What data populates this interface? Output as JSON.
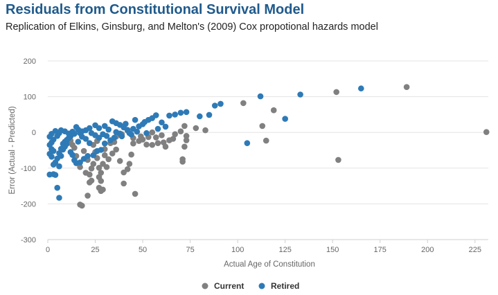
{
  "chart_data": {
    "type": "scatter",
    "title": "Residuals from Constitutional Survival Model",
    "subtitle": "Replication of Elkins, Ginsburg, and Melton's (2009) Cox propotional hazards model",
    "xlabel": "Actual Age of Constitution",
    "ylabel": "Error (Actual - Predicted)",
    "xlim": [
      0,
      232
    ],
    "ylim": [
      -300,
      200
    ],
    "xticks": [
      "0",
      "25",
      "50",
      "75",
      "100",
      "125",
      "150",
      "175",
      "200",
      "225"
    ],
    "yticks": [
      "200",
      "100",
      "0",
      "-100",
      "-200",
      "-300"
    ],
    "grid": "horizontal",
    "legend": "bottom-center",
    "colors": {
      "current": "#808080",
      "retired": "#2e7ab7"
    },
    "series": [
      {
        "name": "Current",
        "color": "#808080",
        "points": [
          [
            189,
            127
          ],
          [
            152,
            113
          ],
          [
            103,
            82
          ],
          [
            119,
            62
          ],
          [
            113,
            18
          ],
          [
            115,
            -23
          ],
          [
            153,
            -77
          ],
          [
            231,
            1
          ],
          [
            83,
            6
          ],
          [
            78,
            12
          ],
          [
            72,
            18
          ],
          [
            70,
            3
          ],
          [
            73,
            -10
          ],
          [
            73,
            -22
          ],
          [
            72,
            -40
          ],
          [
            71,
            -75
          ],
          [
            71,
            -82
          ],
          [
            67,
            -5
          ],
          [
            64,
            -22
          ],
          [
            62,
            -40
          ],
          [
            61,
            -28
          ],
          [
            58,
            -30
          ],
          [
            55,
            -35
          ],
          [
            52,
            -34
          ],
          [
            48,
            -24
          ],
          [
            45,
            -31
          ],
          [
            44,
            -62
          ],
          [
            43,
            -88
          ],
          [
            42,
            -103
          ],
          [
            40,
            -112
          ],
          [
            40,
            -143
          ],
          [
            46,
            -172
          ],
          [
            38,
            -80
          ],
          [
            36,
            -48
          ],
          [
            34,
            -59
          ],
          [
            32,
            -75
          ],
          [
            31,
            -97
          ],
          [
            30,
            -47
          ],
          [
            29,
            -88
          ],
          [
            28,
            -113
          ],
          [
            28,
            -136
          ],
          [
            27,
            -155
          ],
          [
            28,
            -164
          ],
          [
            29,
            -160
          ],
          [
            27,
            -125
          ],
          [
            27,
            -99
          ],
          [
            26,
            -72
          ],
          [
            25,
            -55
          ],
          [
            24,
            -35
          ],
          [
            23,
            -101
          ],
          [
            23,
            -135
          ],
          [
            22,
            -118
          ],
          [
            22,
            -140
          ],
          [
            20,
            -113
          ],
          [
            21,
            -177
          ],
          [
            18,
            -205
          ],
          [
            17,
            -202
          ],
          [
            17,
            -97
          ],
          [
            15,
            -66
          ],
          [
            14,
            -43
          ],
          [
            13,
            -35
          ],
          [
            12,
            -23
          ],
          [
            36,
            -12
          ],
          [
            42,
            5
          ],
          [
            49,
            -11
          ],
          [
            55,
            0
          ],
          [
            57,
            -14
          ],
          [
            60,
            -8
          ],
          [
            66,
            -18
          ],
          [
            33,
            -30
          ],
          [
            26,
            -24
          ],
          [
            19,
            -52
          ],
          [
            21,
            -77
          ],
          [
            24,
            -88
          ],
          [
            30,
            -64
          ],
          [
            35,
            -27
          ],
          [
            39,
            -5
          ],
          [
            45,
            -16
          ],
          [
            50,
            -20
          ],
          [
            53,
            -13
          ]
        ]
      },
      {
        "name": "Retired",
        "color": "#2e7ab7",
        "points": [
          [
            165,
            123
          ],
          [
            133,
            106
          ],
          [
            112,
            101
          ],
          [
            91,
            80
          ],
          [
            88,
            75
          ],
          [
            85,
            49
          ],
          [
            80,
            45
          ],
          [
            125,
            38
          ],
          [
            105,
            -30
          ],
          [
            73,
            57
          ],
          [
            70,
            55
          ],
          [
            67,
            50
          ],
          [
            64,
            47
          ],
          [
            57,
            48
          ],
          [
            55,
            40
          ],
          [
            53,
            35
          ],
          [
            51,
            29
          ],
          [
            50,
            23
          ],
          [
            48,
            17
          ],
          [
            45,
            10
          ],
          [
            42,
            7
          ],
          [
            40,
            14
          ],
          [
            38,
            21
          ],
          [
            36,
            26
          ],
          [
            34,
            31
          ],
          [
            30,
            18
          ],
          [
            27,
            12
          ],
          [
            25,
            20
          ],
          [
            22,
            12
          ],
          [
            20,
            6
          ],
          [
            18,
            3
          ],
          [
            16,
            8
          ],
          [
            15,
            15
          ],
          [
            14,
            -4
          ],
          [
            12,
            -11
          ],
          [
            11,
            -16
          ],
          [
            10,
            -21
          ],
          [
            9,
            -26
          ],
          [
            8,
            -32
          ],
          [
            7,
            -46
          ],
          [
            6,
            -58
          ],
          [
            5,
            -73
          ],
          [
            4,
            -84
          ],
          [
            3,
            -90
          ],
          [
            3,
            -117
          ],
          [
            4,
            -119
          ],
          [
            5,
            -155
          ],
          [
            6,
            -183
          ],
          [
            6,
            -95
          ],
          [
            7,
            -66
          ],
          [
            8,
            -48
          ],
          [
            9,
            -40
          ],
          [
            10,
            -32
          ],
          [
            12,
            -55
          ],
          [
            13,
            -63
          ],
          [
            14,
            -78
          ],
          [
            15,
            -86
          ],
          [
            17,
            -84
          ],
          [
            19,
            -74
          ],
          [
            21,
            -66
          ],
          [
            24,
            -64
          ],
          [
            26,
            -52
          ],
          [
            28,
            -49
          ],
          [
            30,
            -31
          ],
          [
            33,
            -22
          ],
          [
            35,
            -15
          ],
          [
            39,
            -11
          ],
          [
            44,
            -6
          ],
          [
            47,
            2
          ],
          [
            52,
            -2
          ],
          [
            58,
            10
          ],
          [
            62,
            16
          ],
          [
            60,
            28
          ],
          [
            46,
            35
          ],
          [
            41,
            24
          ],
          [
            32,
            8
          ],
          [
            29,
            -5
          ],
          [
            23,
            -2
          ],
          [
            18,
            -12
          ],
          [
            16,
            -26
          ],
          [
            2,
            -4
          ],
          [
            1,
            -12
          ],
          [
            2,
            -28
          ],
          [
            1,
            -35
          ],
          [
            2,
            -47
          ],
          [
            3,
            -52
          ],
          [
            1,
            -60
          ],
          [
            2,
            -68
          ],
          [
            1,
            -118
          ],
          [
            3,
            -20
          ],
          [
            5,
            -10
          ],
          [
            6,
            -2
          ],
          [
            4,
            4
          ],
          [
            7,
            6
          ],
          [
            9,
            3
          ],
          [
            11,
            -3
          ],
          [
            13,
            2
          ],
          [
            17,
            -2
          ],
          [
            20,
            -18
          ],
          [
            22,
            -30
          ],
          [
            25,
            -8
          ],
          [
            27,
            -15
          ],
          [
            31,
            -10
          ],
          [
            36,
            1
          ],
          [
            38,
            -3
          ],
          [
            43,
            -2
          ]
        ]
      }
    ]
  }
}
